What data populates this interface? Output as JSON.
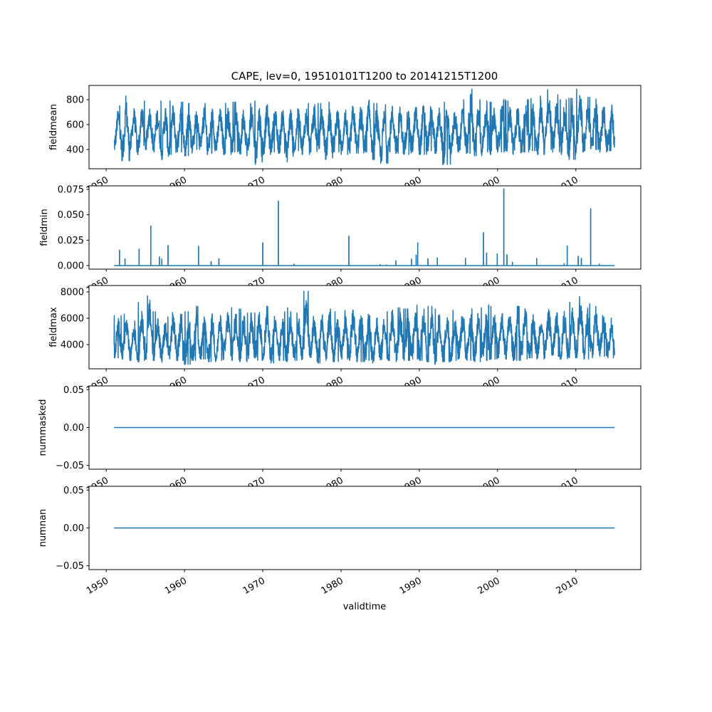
{
  "chart_data": {
    "type": "line",
    "title": "CAPE, lev=0, 19510101T1200 to 20141215T1200",
    "xlabel": "validtime",
    "x_ticks": [
      "1950",
      "1960",
      "1970",
      "1980",
      "1990",
      "2000",
      "2010"
    ],
    "x_range": [
      1947.8,
      2018.3
    ],
    "data_start_year": 1951.0,
    "data_end_year": 2014.96,
    "line_color": "#1f77b4",
    "panels": [
      {
        "ylabel": "fieldmean",
        "ylim": [
          246,
          914
        ],
        "yticks": [
          400,
          600,
          800
        ],
        "ytick_labels": [
          "400",
          "600",
          "800"
        ],
        "yearly_max": [
          750,
          830,
          760,
          790,
          770,
          760,
          790,
          790,
          780,
          770,
          760,
          770,
          760,
          750,
          770,
          780,
          760,
          770,
          790,
          790,
          770,
          760,
          780,
          760,
          770,
          760,
          770,
          780,
          770,
          760,
          790,
          780,
          830,
          770,
          760,
          780,
          770,
          760,
          780,
          800,
          790,
          760,
          780,
          770,
          800,
          885,
          800,
          790,
          780,
          800,
          790,
          780,
          800,
          810,
          830,
          880,
          840,
          800,
          810,
          885,
          820,
          830,
          810,
          800
        ],
        "yearly_min": [
          400,
          310,
          380,
          360,
          400,
          380,
          320,
          360,
          380,
          350,
          400,
          360,
          370,
          390,
          360,
          380,
          350,
          360,
          280,
          360,
          380,
          370,
          300,
          390,
          360,
          380,
          370,
          320,
          380,
          360,
          370,
          350,
          380,
          320,
          290,
          380,
          370,
          360,
          380,
          360,
          390,
          370,
          280,
          360,
          380,
          370,
          350,
          380,
          360,
          380,
          370,
          360,
          380,
          390,
          360,
          400,
          380,
          360,
          320,
          380,
          390,
          400,
          380,
          390
        ]
      },
      {
        "ylabel": "fieldmin",
        "ylim": [
          -0.0035,
          0.0785
        ],
        "yticks": [
          0,
          0.025,
          0.05,
          0.075
        ],
        "ytick_labels": [
          "0.000",
          "0.025",
          "0.050",
          "0.075"
        ],
        "baseline": 0,
        "spikes": [
          [
            1951.7,
            0.0153
          ],
          [
            1952.4,
            0.0066
          ],
          [
            1954.2,
            0.0163
          ],
          [
            1955.7,
            0.039
          ],
          [
            1956.8,
            0.0085
          ],
          [
            1957.1,
            0.0064
          ],
          [
            1957.9,
            0.0198
          ],
          [
            1961.8,
            0.019
          ],
          [
            1963.4,
            0.004
          ],
          [
            1964.4,
            0.0068
          ],
          [
            1970.0,
            0.0224
          ],
          [
            1972.0,
            0.0634
          ],
          [
            1974.0,
            0.0014
          ],
          [
            1981.0,
            0.029
          ],
          [
            1985.0,
            0.001
          ],
          [
            1985.8,
            0.0007
          ],
          [
            1987.0,
            0.0047
          ],
          [
            1989.0,
            0.0064
          ],
          [
            1989.6,
            0.0104
          ],
          [
            1989.8,
            0.0224
          ],
          [
            1991.1,
            0.0068
          ],
          [
            1992.3,
            0.0075
          ],
          [
            1995.9,
            0.0073
          ],
          [
            1998.2,
            0.0325
          ],
          [
            1998.6,
            0.0125
          ],
          [
            1999.95,
            0.0116
          ],
          [
            2000.8,
            0.0755
          ],
          [
            2001.2,
            0.0108
          ],
          [
            2001.9,
            0.0035
          ],
          [
            2005.0,
            0.0071
          ],
          [
            2008.5,
            0.0019
          ],
          [
            2008.9,
            0.0193
          ],
          [
            2010.3,
            0.0092
          ],
          [
            2010.7,
            0.0071
          ],
          [
            2011.9,
            0.056
          ],
          [
            2013.0,
            0.0016
          ]
        ]
      },
      {
        "ylabel": "fieldmax",
        "ylim": [
          2162,
          8486
        ],
        "yticks": [
          4000,
          6000,
          8000
        ],
        "ytick_labels": [
          "4000",
          "6000",
          "8000"
        ],
        "yearly_max": [
          6200,
          6300,
          5800,
          7200,
          7700,
          6500,
          6100,
          6800,
          6300,
          6500,
          6900,
          6400,
          6600,
          6500,
          6900,
          6800,
          6700,
          6400,
          7000,
          6900,
          6600,
          6500,
          6800,
          6400,
          8050,
          6600,
          6900,
          6700,
          6500,
          6600,
          7300,
          6800,
          6700,
          6600,
          6500,
          6900,
          6800,
          6700,
          7000,
          7200,
          6900,
          6700,
          6800,
          6600,
          6900,
          6700,
          6800,
          7000,
          6900,
          6700,
          6800,
          6900,
          7100,
          6600,
          6700,
          7000,
          6800,
          6900,
          7200,
          8200,
          7100,
          6900,
          6800,
          6300
        ],
        "yearly_min": [
          3000,
          2900,
          2800,
          2700,
          2900,
          2800,
          2600,
          2900,
          2800,
          2500,
          2800,
          2900,
          2700,
          2800,
          2900,
          2800,
          2700,
          2900,
          2800,
          2900,
          2600,
          2800,
          2700,
          2800,
          2900,
          2700,
          2600,
          2800,
          2700,
          2900,
          2800,
          2700,
          2800,
          2600,
          2700,
          2800,
          2700,
          2800,
          2900,
          2800,
          2700,
          2500,
          2700,
          2800,
          2900,
          2800,
          2700,
          2800,
          2900,
          3000,
          2900,
          2800,
          2900,
          3000,
          2900,
          3000,
          3100,
          2900,
          3000,
          3000,
          2900,
          3000,
          3100,
          3000
        ]
      },
      {
        "ylabel": "nummasked",
        "ylim": [
          -0.055,
          0.055
        ],
        "yticks": [
          -0.05,
          0,
          0.05
        ],
        "ytick_labels": [
          "−0.05",
          "0.00",
          "0.05"
        ],
        "constant": 0
      },
      {
        "ylabel": "numnan",
        "ylim": [
          -0.055,
          0.055
        ],
        "yticks": [
          -0.05,
          0,
          0.05
        ],
        "ytick_labels": [
          "−0.05",
          "0.00",
          "0.05"
        ],
        "constant": 0
      }
    ]
  }
}
